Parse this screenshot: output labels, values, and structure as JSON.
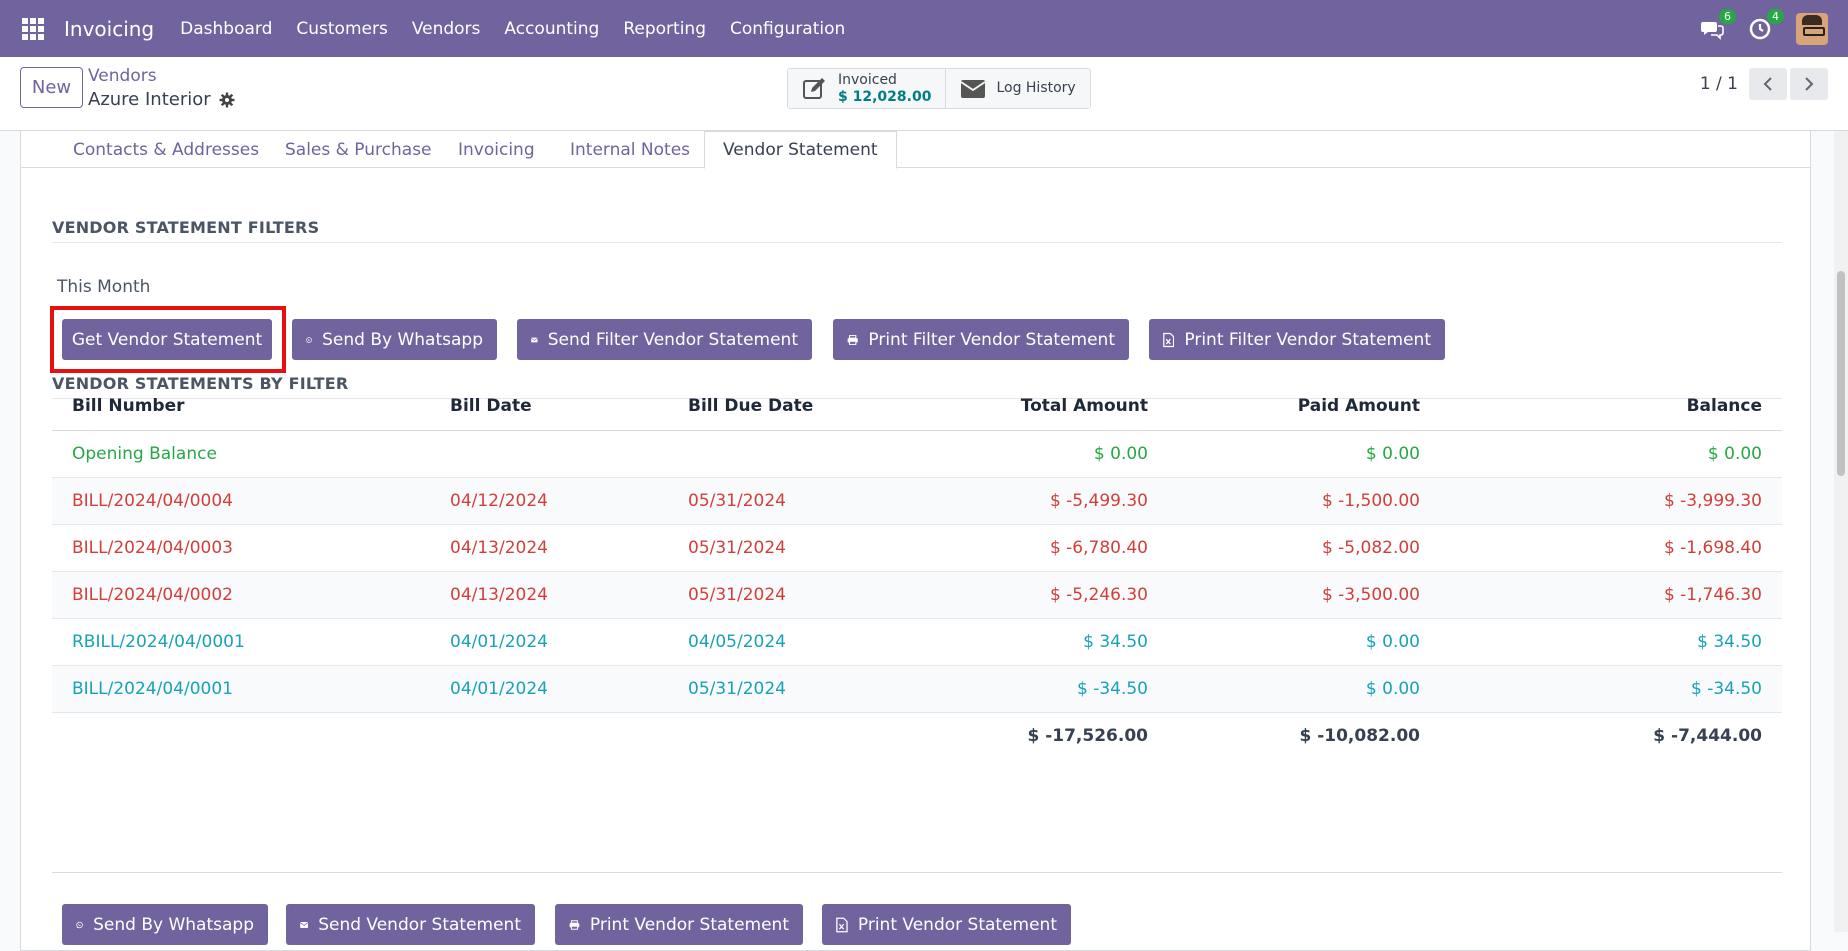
{
  "topbar": {
    "app_name": "Invoicing",
    "menu": [
      "Dashboard",
      "Customers",
      "Vendors",
      "Accounting",
      "Reporting",
      "Configuration"
    ],
    "messages_count": "6",
    "activities_count": "4"
  },
  "control": {
    "new_label": "New",
    "breadcrumb": "Vendors",
    "record_title": "Azure Interior",
    "invoiced_label": "Invoiced",
    "invoiced_value": "$ 12,028.00",
    "log_history_label": "Log History",
    "pager": "1 / 1"
  },
  "tabs": [
    "Contacts & Addresses",
    "Sales & Purchase",
    "Invoicing",
    "Internal Notes",
    "Vendor Statement"
  ],
  "filters": {
    "title": "VENDOR STATEMENT FILTERS",
    "period": "This Month",
    "buttons": [
      "Get Vendor Statement",
      "Send By Whatsapp",
      "Send Filter Vendor Statement",
      "Print Filter Vendor Statement",
      "Print Filter Vendor Statement"
    ]
  },
  "statements": {
    "title": "VENDOR STATEMENTS BY FILTER",
    "columns": [
      "Bill Number",
      "Bill Date",
      "Bill Due Date",
      "Total Amount",
      "Paid Amount",
      "Balance"
    ],
    "rows": [
      {
        "bill": "Opening Balance",
        "date": "",
        "due": "",
        "total": "$ 0.00",
        "paid": "$ 0.00",
        "balance": "$ 0.00",
        "status": "opening"
      },
      {
        "bill": "BILL/2024/04/0004",
        "date": "04/12/2024",
        "due": "05/31/2024",
        "total": "$ -5,499.30",
        "paid": "$ -1,500.00",
        "balance": "$ -3,999.30",
        "status": "overdue"
      },
      {
        "bill": "BILL/2024/04/0003",
        "date": "04/13/2024",
        "due": "05/31/2024",
        "total": "$ -6,780.40",
        "paid": "$ -5,082.00",
        "balance": "$ -1,698.40",
        "status": "overdue"
      },
      {
        "bill": "BILL/2024/04/0002",
        "date": "04/13/2024",
        "due": "05/31/2024",
        "total": "$ -5,246.30",
        "paid": "$ -3,500.00",
        "balance": "$ -1,746.30",
        "status": "overdue"
      },
      {
        "bill": "RBILL/2024/04/0001",
        "date": "04/01/2024",
        "due": "04/05/2024",
        "total": "$ 34.50",
        "paid": "$ 0.00",
        "balance": "$ 34.50",
        "status": "normal"
      },
      {
        "bill": "BILL/2024/04/0001",
        "date": "04/01/2024",
        "due": "05/31/2024",
        "total": "$ -34.50",
        "paid": "$ 0.00",
        "balance": "$ -34.50",
        "status": "normal"
      }
    ],
    "totals": {
      "total": "$ -17,526.00",
      "paid": "$ -10,082.00",
      "balance": "$ -7,444.00"
    }
  },
  "bottom_buttons": [
    "Send By Whatsapp",
    "Send Vendor Statement",
    "Print Vendor Statement",
    "Print Vendor Statement"
  ],
  "colors": {
    "brand": "#71639e",
    "opening": "#28a745",
    "overdue": "#d23f3a",
    "normal": "#17a2b8",
    "highlight": "#e51010"
  }
}
